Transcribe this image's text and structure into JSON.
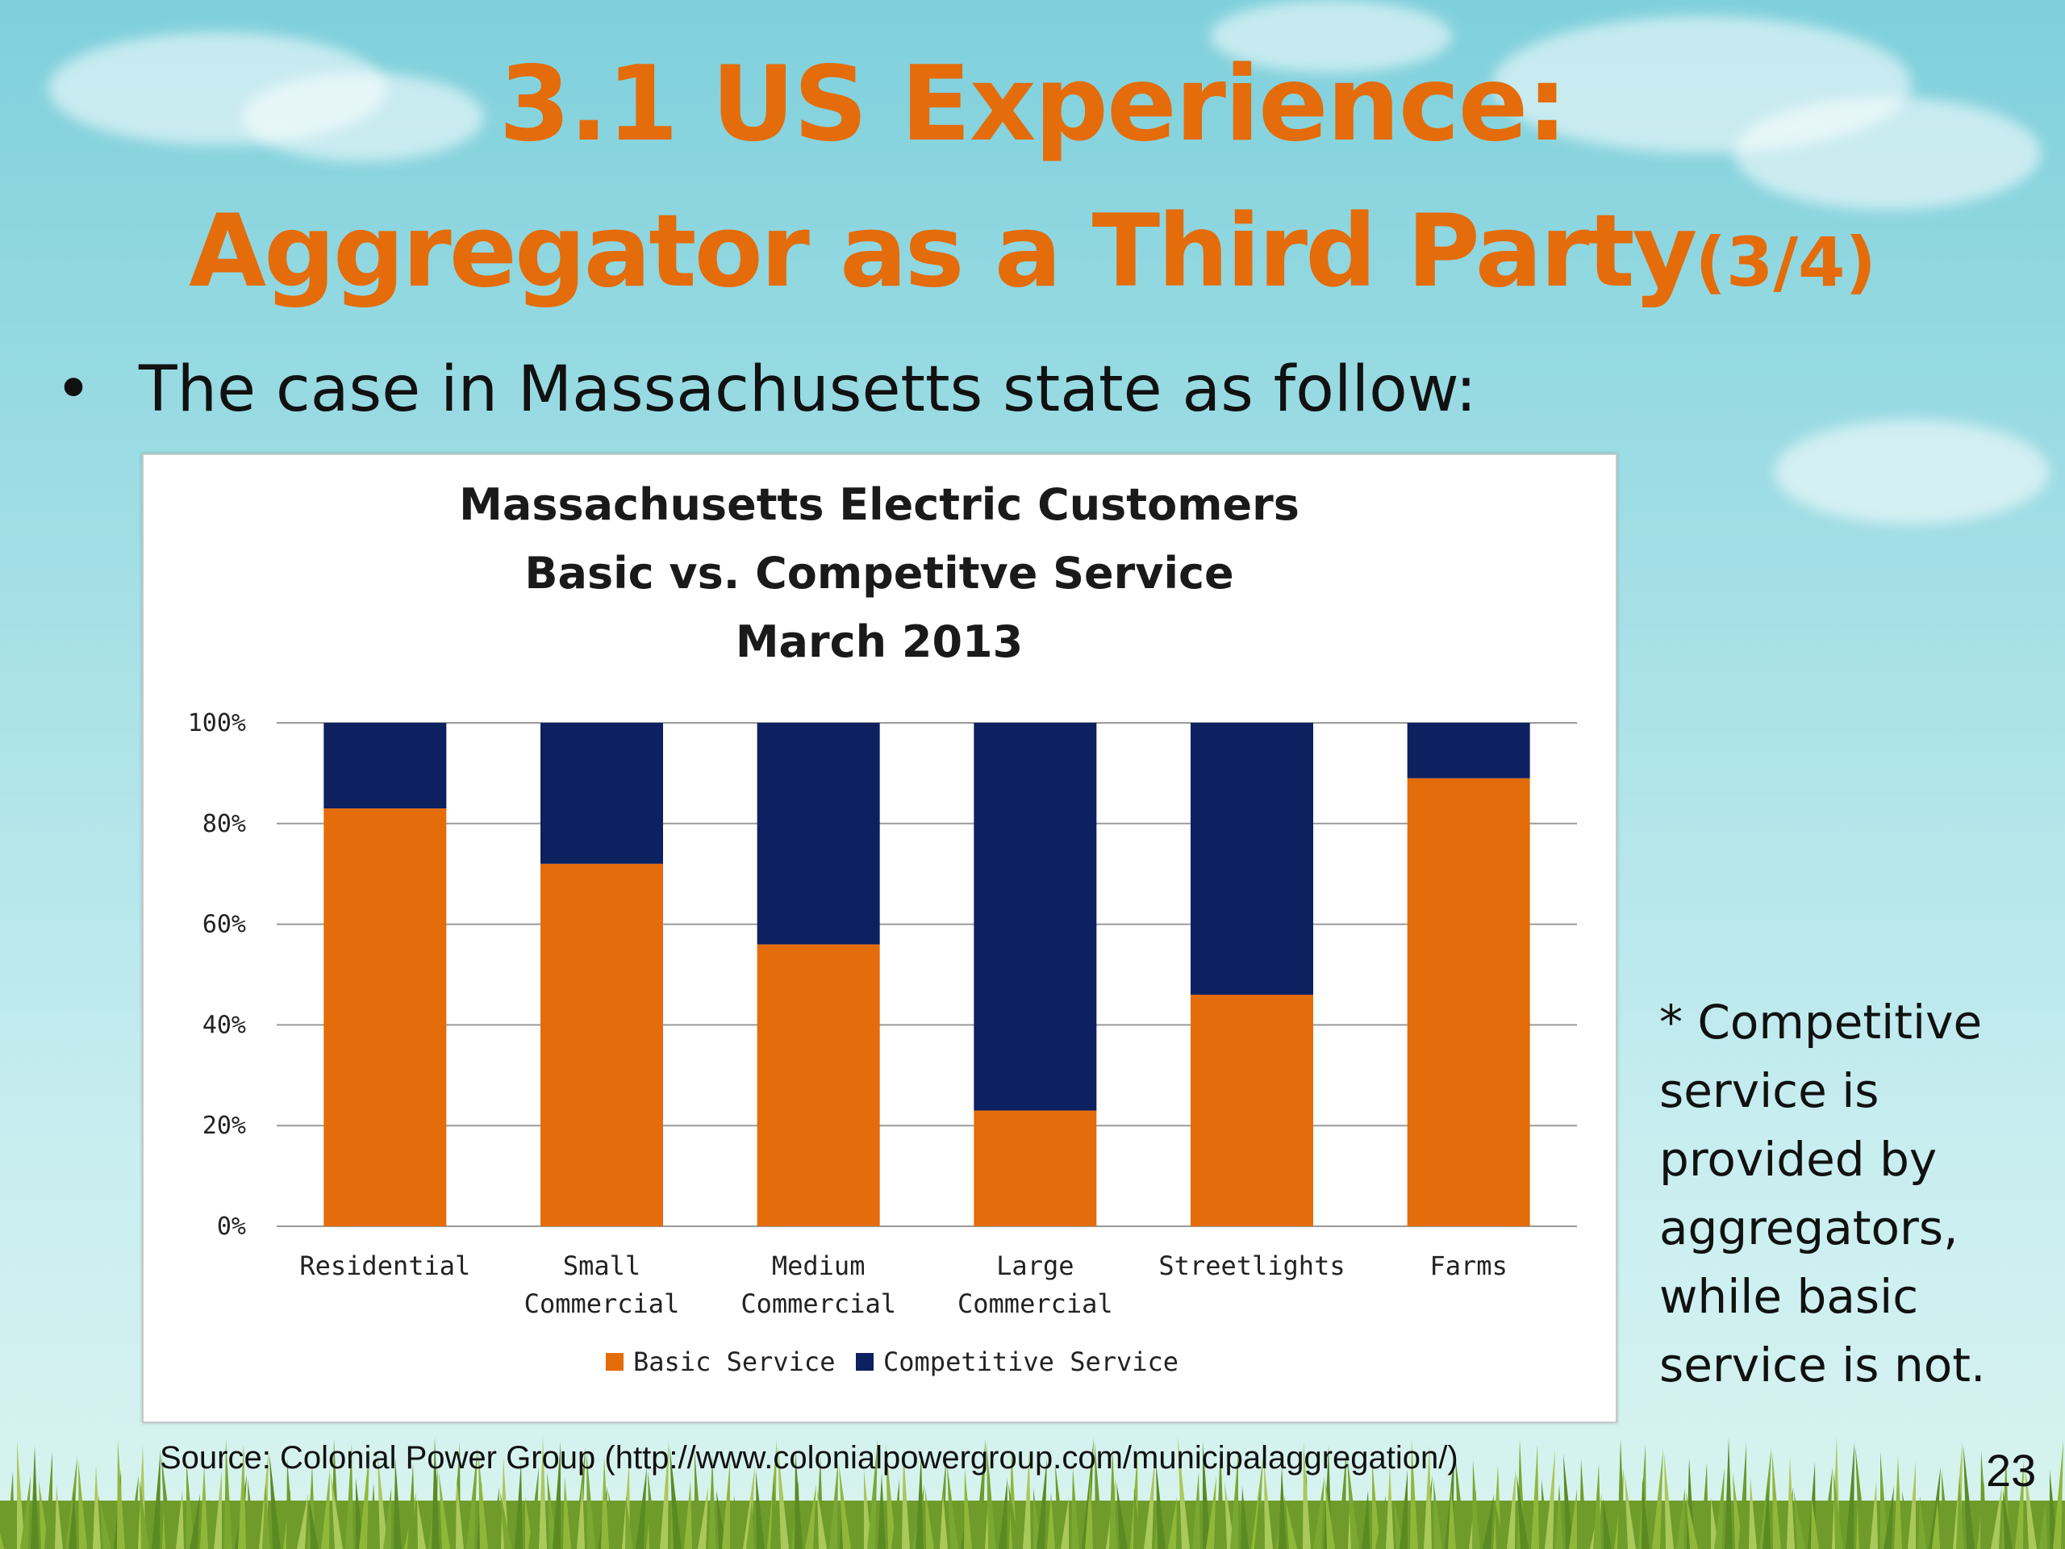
{
  "slide": {
    "title_line1": "3.1 US Experience:",
    "title_line2": "Aggregator as a Third Party",
    "title_part": "(3/4)",
    "bullet": "The case in Massachusetts state as follow:",
    "note_lines": [
      "* Competitive",
      "service is",
      "provided by",
      "aggregators,",
      "while basic",
      "service is not."
    ],
    "source": "Source: Colonial Power Group (http://www.colonialpowergroup.com/municipalaggregation/)",
    "page_number": "23"
  },
  "colors": {
    "title": "#e46c0a",
    "basic": "#e46c0a",
    "competitive": "#0d2160"
  },
  "chart_data": {
    "type": "bar",
    "stacked": true,
    "title_lines": [
      "Massachusetts Electric Customers",
      "Basic vs. Competitve Service",
      "March 2013"
    ],
    "categories": [
      [
        "Residential"
      ],
      [
        "Small",
        "Commercial"
      ],
      [
        "Medium",
        "Commercial"
      ],
      [
        "Large",
        "Commercial"
      ],
      [
        "Streetlights"
      ],
      [
        "Farms"
      ]
    ],
    "series": [
      {
        "name": "Basic Service",
        "color": "#e46c0a",
        "values": [
          83,
          72,
          56,
          23,
          46,
          89
        ]
      },
      {
        "name": "Competitive Service",
        "color": "#0d2160",
        "values": [
          17,
          28,
          44,
          77,
          54,
          11
        ]
      }
    ],
    "y_ticks": [
      "0%",
      "20%",
      "40%",
      "60%",
      "80%",
      "100%"
    ],
    "ylim": [
      0,
      100
    ],
    "grid": true,
    "legend": "bottom"
  }
}
